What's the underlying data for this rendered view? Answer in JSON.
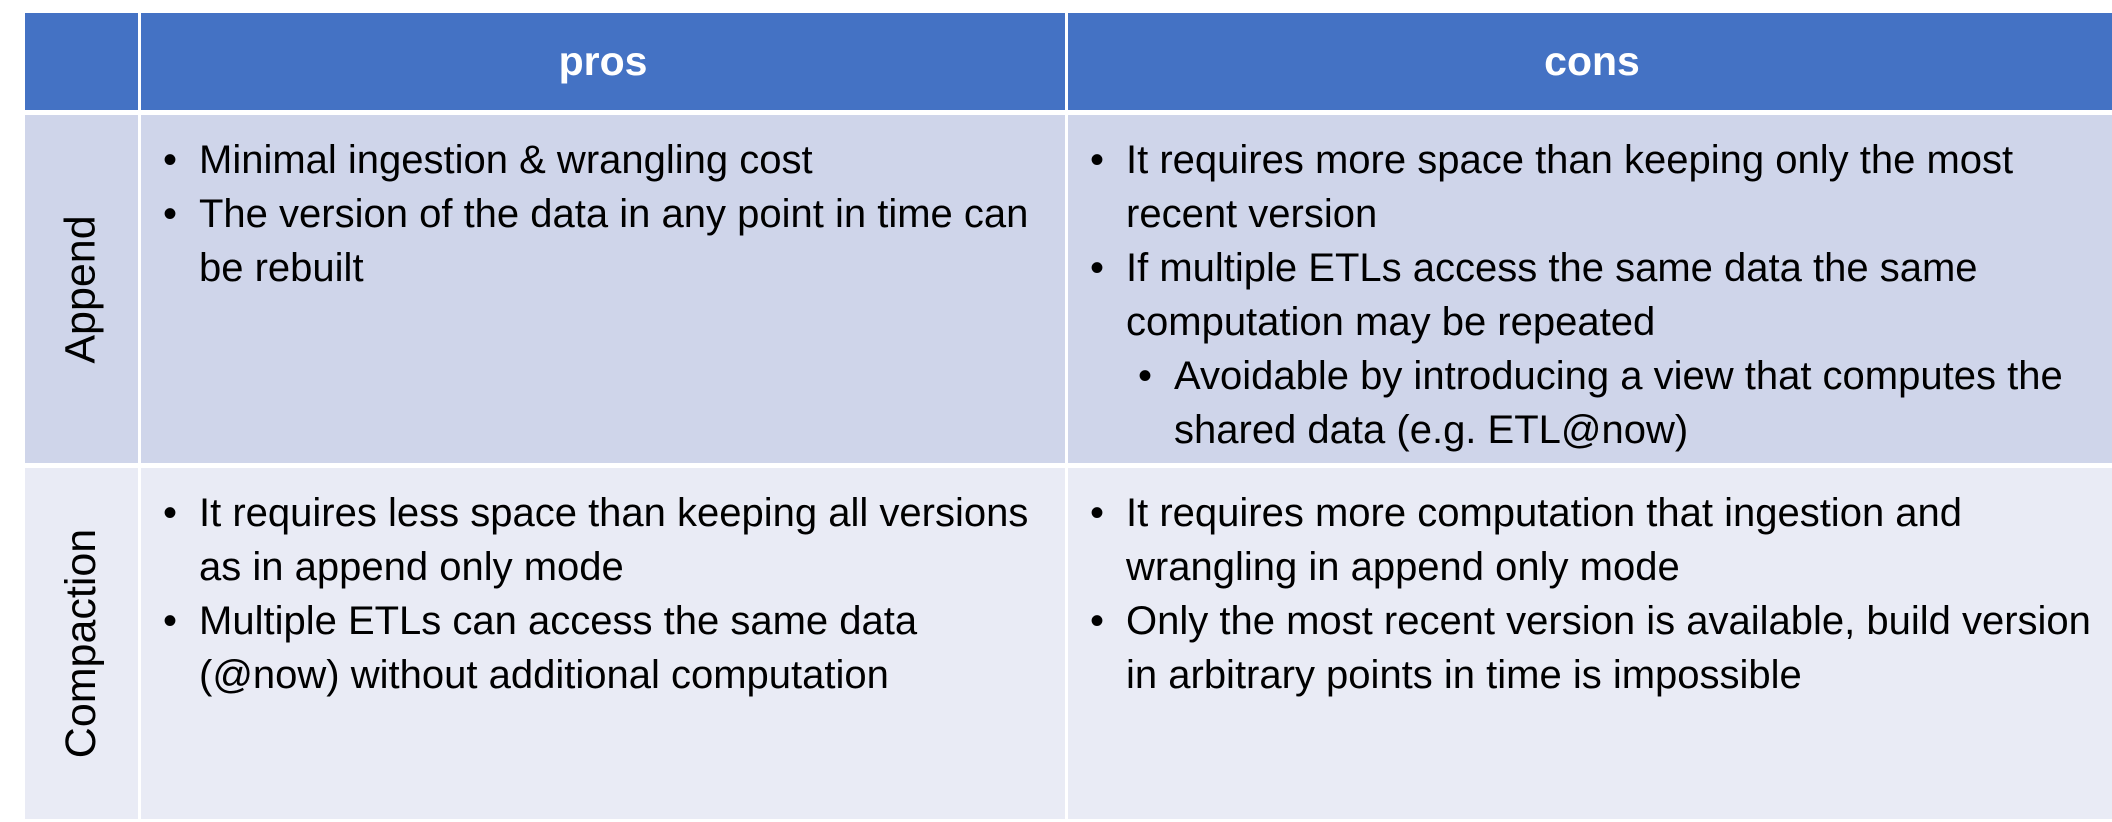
{
  "table": {
    "headers": [
      "",
      "pros",
      "cons"
    ],
    "rows": [
      {
        "label": "Append",
        "pros": [
          "Minimal ingestion & wrangling cost",
          "The version of the data in any point in time can be rebuilt"
        ],
        "cons": [
          "It requires more space than keeping only the most recent version",
          "If multiple ETLs access the same data the same computation may be repeated",
          "Avoidable by introducing a view that computes the shared data (e.g. ETL@now)"
        ]
      },
      {
        "label": "Compaction",
        "pros": [
          "It requires less space than keeping all versions as in append only mode",
          "Multiple ETLs can access the same data (@now) without additional computation"
        ],
        "cons": [
          "It requires more computation that ingestion and wrangling in append only mode",
          "Only the most recent version is available, build version in arbitrary points in time is impossible"
        ]
      }
    ]
  },
  "colors": {
    "header_bg": "#4472c4",
    "header_text": "#ffffff",
    "row_append_bg": "#cfd5ea",
    "row_compaction_bg": "#e9ebf5"
  }
}
